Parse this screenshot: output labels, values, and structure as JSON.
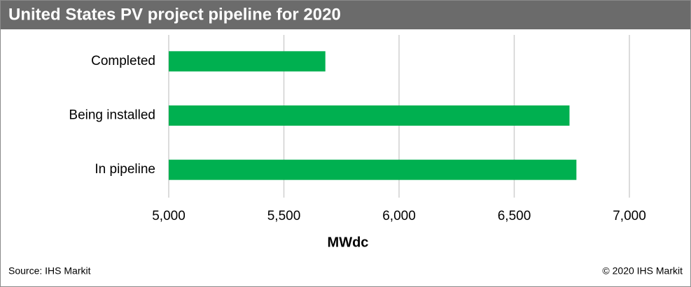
{
  "chart_data": {
    "type": "bar",
    "orientation": "horizontal",
    "title": "United States PV project pipeline for 2020",
    "categories": [
      "Completed",
      "Being installed",
      "In pipeline"
    ],
    "values": [
      5680,
      6740,
      6770
    ],
    "color": "#00b050",
    "xlim": [
      5000,
      7000
    ],
    "xticks": [
      {
        "value": 5000,
        "label": "5,000"
      },
      {
        "value": 5500,
        "label": "5,500"
      },
      {
        "value": 6000,
        "label": "6,000"
      },
      {
        "value": 6500,
        "label": "6,500"
      },
      {
        "value": 7000,
        "label": "7,000"
      }
    ],
    "x_label": "MWdc",
    "grid": true,
    "source": "Source: IHS Markit",
    "copyright": "© 2020 IHS Markit"
  }
}
